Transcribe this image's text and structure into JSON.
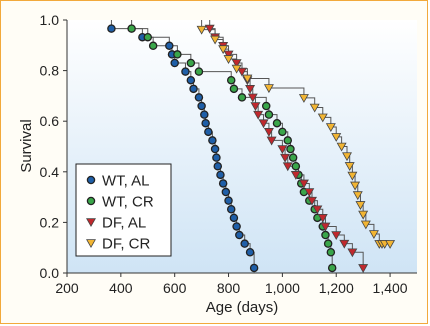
{
  "chart_data": {
    "type": "scatter",
    "title": "",
    "xlabel": "Age (days)",
    "ylabel": "Survival",
    "xlim": [
      200,
      1500
    ],
    "ylim": [
      0,
      1.0
    ],
    "x_ticks": [
      200,
      400,
      600,
      800,
      1000,
      1200,
      1400
    ],
    "x_tick_labels": [
      "200",
      "400",
      "600",
      "800",
      "1,000",
      "1,200",
      "1,400"
    ],
    "y_ticks": [
      0,
      0.2,
      0.4,
      0.6,
      0.8,
      1.0
    ],
    "y_tick_labels": [
      "0.0",
      "0.2",
      "0.4",
      "0.6",
      "0.8",
      "1.0"
    ],
    "grid": false,
    "legend": "bottom-left",
    "background": "gradient-white-to-light-blue",
    "series": [
      {
        "name": "WT, AL",
        "marker": "circle",
        "color": "#1f5fa8",
        "x": [
          365,
          480,
          580,
          590,
          600,
          640,
          660,
          670,
          690,
          700,
          710,
          715,
          725,
          740,
          750,
          755,
          760,
          770,
          780,
          790,
          800,
          810,
          820,
          830,
          840,
          860,
          880,
          895
        ],
        "y": [
          0.966,
          0.932,
          0.898,
          0.864,
          0.83,
          0.796,
          0.762,
          0.728,
          0.694,
          0.66,
          0.626,
          0.592,
          0.558,
          0.524,
          0.49,
          0.456,
          0.422,
          0.388,
          0.354,
          0.32,
          0.286,
          0.252,
          0.218,
          0.184,
          0.15,
          0.116,
          0.082,
          0.02
        ]
      },
      {
        "name": "WT, CR",
        "marker": "circle",
        "color": "#3aa64a",
        "x": [
          440,
          500,
          520,
          610,
          660,
          690,
          810,
          820,
          850,
          940,
          950,
          980,
          1000,
          1020,
          1030,
          1040,
          1050,
          1060,
          1070,
          1080,
          1100,
          1120,
          1130,
          1150,
          1160,
          1170,
          1180,
          1185
        ],
        "y": [
          0.966,
          0.932,
          0.898,
          0.864,
          0.83,
          0.796,
          0.762,
          0.728,
          0.694,
          0.66,
          0.626,
          0.592,
          0.558,
          0.524,
          0.49,
          0.456,
          0.422,
          0.388,
          0.354,
          0.32,
          0.286,
          0.252,
          0.218,
          0.184,
          0.15,
          0.116,
          0.082,
          0.02
        ]
      },
      {
        "name": "DF, AL",
        "marker": "triangle-down",
        "color": "#c0282d",
        "x": [
          730,
          750,
          780,
          800,
          830,
          850,
          870,
          880,
          890,
          900,
          910,
          930,
          950,
          960,
          1000,
          1010,
          1020,
          1050,
          1080,
          1100,
          1110,
          1130,
          1150,
          1160,
          1200,
          1230,
          1260,
          1300
        ],
        "y": [
          0.966,
          0.932,
          0.898,
          0.864,
          0.83,
          0.796,
          0.762,
          0.728,
          0.694,
          0.66,
          0.626,
          0.592,
          0.558,
          0.524,
          0.49,
          0.456,
          0.422,
          0.388,
          0.354,
          0.32,
          0.286,
          0.252,
          0.218,
          0.184,
          0.15,
          0.116,
          0.082,
          0.02
        ]
      },
      {
        "name": "DF, CR",
        "marker": "triangle-down",
        "color": "#f2b533",
        "x": [
          700,
          750,
          780,
          800,
          830,
          870,
          950,
          1080,
          1120,
          1150,
          1180,
          1200,
          1220,
          1240,
          1250,
          1260,
          1270,
          1280,
          1290,
          1300,
          1310,
          1340,
          1360,
          1370,
          1380,
          1400
        ],
        "y": [
          0.962,
          0.923,
          0.885,
          0.846,
          0.808,
          0.769,
          0.731,
          0.692,
          0.654,
          0.615,
          0.577,
          0.538,
          0.5,
          0.462,
          0.423,
          0.385,
          0.346,
          0.308,
          0.269,
          0.231,
          0.192,
          0.154,
          0.115,
          0.115,
          0.115,
          0.115
        ]
      }
    ]
  }
}
